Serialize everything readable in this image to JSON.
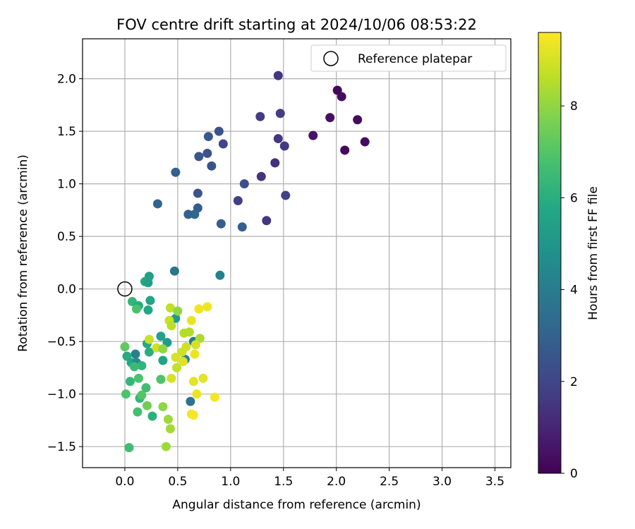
{
  "chart_data": {
    "type": "scatter",
    "title": "FOV centre drift starting at 2024/10/06 08:53:22",
    "xlabel": "Angular distance from reference (arcmin)",
    "ylabel": "Rotation from reference (arcmin)",
    "xlim": [
      -0.4,
      3.65
    ],
    "ylim": [
      -1.7,
      2.38
    ],
    "xticks": [
      "0.0",
      "0.5",
      "1.0",
      "1.5",
      "2.0",
      "2.5",
      "3.0",
      "3.5"
    ],
    "yticks": [
      "2.0",
      "1.5",
      "1.0",
      "0.5",
      "0.0",
      "−0.5",
      "−1.0",
      "−1.5"
    ],
    "grid": true,
    "legend": {
      "placement": "upper-right",
      "label": "Reference platepar"
    },
    "colormap": "viridis",
    "colorbar": {
      "label": "Hours from first FF file",
      "range": [
        0,
        9.6
      ],
      "ticks": [
        "0",
        "2",
        "4",
        "6",
        "8"
      ]
    },
    "reference_point": {
      "x": 0.0,
      "y": 0.0
    },
    "points": [
      {
        "x": 2.01,
        "y": 1.89,
        "h": 0.2
      },
      {
        "x": 2.05,
        "y": 1.83,
        "h": 0.3
      },
      {
        "x": 1.94,
        "y": 1.63,
        "h": 0.4
      },
      {
        "x": 2.2,
        "y": 1.61,
        "h": 0.3
      },
      {
        "x": 1.78,
        "y": 1.46,
        "h": 0.5
      },
      {
        "x": 2.08,
        "y": 1.32,
        "h": 0.2
      },
      {
        "x": 2.27,
        "y": 1.4,
        "h": 0.3
      },
      {
        "x": 1.45,
        "y": 2.03,
        "h": 1.5
      },
      {
        "x": 1.47,
        "y": 1.67,
        "h": 1.7
      },
      {
        "x": 1.28,
        "y": 1.64,
        "h": 1.7
      },
      {
        "x": 1.45,
        "y": 1.43,
        "h": 1.5
      },
      {
        "x": 1.51,
        "y": 1.36,
        "h": 1.6
      },
      {
        "x": 1.42,
        "y": 1.2,
        "h": 1.3
      },
      {
        "x": 1.29,
        "y": 1.07,
        "h": 1.4
      },
      {
        "x": 1.52,
        "y": 0.89,
        "h": 1.9
      },
      {
        "x": 1.34,
        "y": 0.65,
        "h": 1.5
      },
      {
        "x": 1.07,
        "y": 0.84,
        "h": 1.8
      },
      {
        "x": 1.13,
        "y": 1.0,
        "h": 2.3
      },
      {
        "x": 0.93,
        "y": 1.38,
        "h": 2.0
      },
      {
        "x": 0.89,
        "y": 1.5,
        "h": 2.5
      },
      {
        "x": 0.79,
        "y": 1.45,
        "h": 2.6
      },
      {
        "x": 0.78,
        "y": 1.29,
        "h": 2.4
      },
      {
        "x": 0.7,
        "y": 1.26,
        "h": 2.6
      },
      {
        "x": 0.82,
        "y": 1.17,
        "h": 2.5
      },
      {
        "x": 0.48,
        "y": 1.11,
        "h": 2.9
      },
      {
        "x": 0.69,
        "y": 0.91,
        "h": 2.4
      },
      {
        "x": 0.31,
        "y": 0.81,
        "h": 3.1
      },
      {
        "x": 0.69,
        "y": 0.77,
        "h": 2.8
      },
      {
        "x": 0.6,
        "y": 0.71,
        "h": 3.0
      },
      {
        "x": 0.66,
        "y": 0.71,
        "h": 3.2
      },
      {
        "x": 0.91,
        "y": 0.62,
        "h": 2.8
      },
      {
        "x": 1.11,
        "y": 0.59,
        "h": 2.9
      },
      {
        "x": 0.47,
        "y": 0.17,
        "h": 3.7
      },
      {
        "x": 0.9,
        "y": 0.13,
        "h": 4.2
      },
      {
        "x": 0.23,
        "y": 0.12,
        "h": 5.4
      },
      {
        "x": 0.19,
        "y": 0.07,
        "h": 5.8
      },
      {
        "x": 0.22,
        "y": 0.06,
        "h": 5.4
      },
      {
        "x": 0.07,
        "y": -0.12,
        "h": 6.3
      },
      {
        "x": 0.13,
        "y": -0.16,
        "h": 5.9
      },
      {
        "x": 0.24,
        "y": -0.11,
        "h": 5.6
      },
      {
        "x": 0.11,
        "y": -0.19,
        "h": 6.8
      },
      {
        "x": 0.22,
        "y": -0.2,
        "h": 5.7
      },
      {
        "x": 0.48,
        "y": -0.28,
        "h": 5.2
      },
      {
        "x": 0.34,
        "y": -0.45,
        "h": 5.5
      },
      {
        "x": 0.21,
        "y": -0.52,
        "h": 5.8
      },
      {
        "x": 0.4,
        "y": -0.51,
        "h": 5.2
      },
      {
        "x": 0.23,
        "y": -0.6,
        "h": 6.0
      },
      {
        "x": 0.1,
        "y": -0.62,
        "h": 4.2
      },
      {
        "x": 0.02,
        "y": -0.64,
        "h": 5.9
      },
      {
        "x": 0.06,
        "y": -0.7,
        "h": 5.7
      },
      {
        "x": 0.11,
        "y": -0.7,
        "h": 4.6
      },
      {
        "x": 0.16,
        "y": -0.73,
        "h": 6.2
      },
      {
        "x": 0.36,
        "y": -0.68,
        "h": 5.6
      },
      {
        "x": 0.57,
        "y": -0.67,
        "h": 4.1
      },
      {
        "x": 0.65,
        "y": -0.5,
        "h": 3.9
      },
      {
        "x": 0.62,
        "y": -1.07,
        "h": 3.6
      },
      {
        "x": 0.0,
        "y": -0.55,
        "h": 7.2
      },
      {
        "x": 0.09,
        "y": -0.74,
        "h": 6.5
      },
      {
        "x": 0.13,
        "y": -0.85,
        "h": 6.8
      },
      {
        "x": 0.05,
        "y": -0.88,
        "h": 6.3
      },
      {
        "x": 0.2,
        "y": -0.94,
        "h": 6.6
      },
      {
        "x": 0.14,
        "y": -1.04,
        "h": 6.3
      },
      {
        "x": 0.16,
        "y": -1.01,
        "h": 7.0
      },
      {
        "x": 0.01,
        "y": -1.0,
        "h": 6.9
      },
      {
        "x": 0.21,
        "y": -1.11,
        "h": 7.5
      },
      {
        "x": 0.12,
        "y": -1.17,
        "h": 6.7
      },
      {
        "x": 0.26,
        "y": -1.21,
        "h": 6.1
      },
      {
        "x": 0.34,
        "y": -0.86,
        "h": 6.9
      },
      {
        "x": 0.36,
        "y": -1.12,
        "h": 8.0
      },
      {
        "x": 0.41,
        "y": -1.24,
        "h": 8.2
      },
      {
        "x": 0.43,
        "y": -1.33,
        "h": 8.3
      },
      {
        "x": 0.39,
        "y": -1.5,
        "h": 8.2
      },
      {
        "x": 0.04,
        "y": -1.51,
        "h": 6.6
      },
      {
        "x": 0.23,
        "y": -0.48,
        "h": 8.8
      },
      {
        "x": 0.3,
        "y": -0.56,
        "h": 8.9
      },
      {
        "x": 0.36,
        "y": -0.57,
        "h": 8.0
      },
      {
        "x": 0.43,
        "y": -0.18,
        "h": 8.7
      },
      {
        "x": 0.5,
        "y": -0.21,
        "h": 8.0
      },
      {
        "x": 0.42,
        "y": -0.3,
        "h": 8.8
      },
      {
        "x": 0.44,
        "y": -0.35,
        "h": 8.6
      },
      {
        "x": 0.56,
        "y": -0.42,
        "h": 8.5
      },
      {
        "x": 0.61,
        "y": -0.41,
        "h": 8.5
      },
      {
        "x": 0.58,
        "y": -0.55,
        "h": 8.9
      },
      {
        "x": 0.54,
        "y": -0.6,
        "h": 8.9
      },
      {
        "x": 0.48,
        "y": -0.65,
        "h": 9.0
      },
      {
        "x": 0.55,
        "y": -0.69,
        "h": 9.1
      },
      {
        "x": 0.49,
        "y": -0.75,
        "h": 8.7
      },
      {
        "x": 0.44,
        "y": -0.85,
        "h": 9.0
      },
      {
        "x": 0.65,
        "y": -0.88,
        "h": 9.2
      },
      {
        "x": 0.63,
        "y": -0.3,
        "h": 9.3
      },
      {
        "x": 0.7,
        "y": -0.19,
        "h": 9.4
      },
      {
        "x": 0.78,
        "y": -0.17,
        "h": 9.4
      },
      {
        "x": 0.71,
        "y": -0.47,
        "h": 8.4
      },
      {
        "x": 0.67,
        "y": -0.53,
        "h": 9.0
      },
      {
        "x": 0.66,
        "y": -0.62,
        "h": 9.3
      },
      {
        "x": 0.74,
        "y": -0.85,
        "h": 9.2
      },
      {
        "x": 0.68,
        "y": -1.0,
        "h": 9.3
      },
      {
        "x": 0.63,
        "y": -1.19,
        "h": 9.4
      },
      {
        "x": 0.65,
        "y": -1.2,
        "h": 9.5
      },
      {
        "x": 0.85,
        "y": -1.03,
        "h": 9.5
      }
    ]
  }
}
